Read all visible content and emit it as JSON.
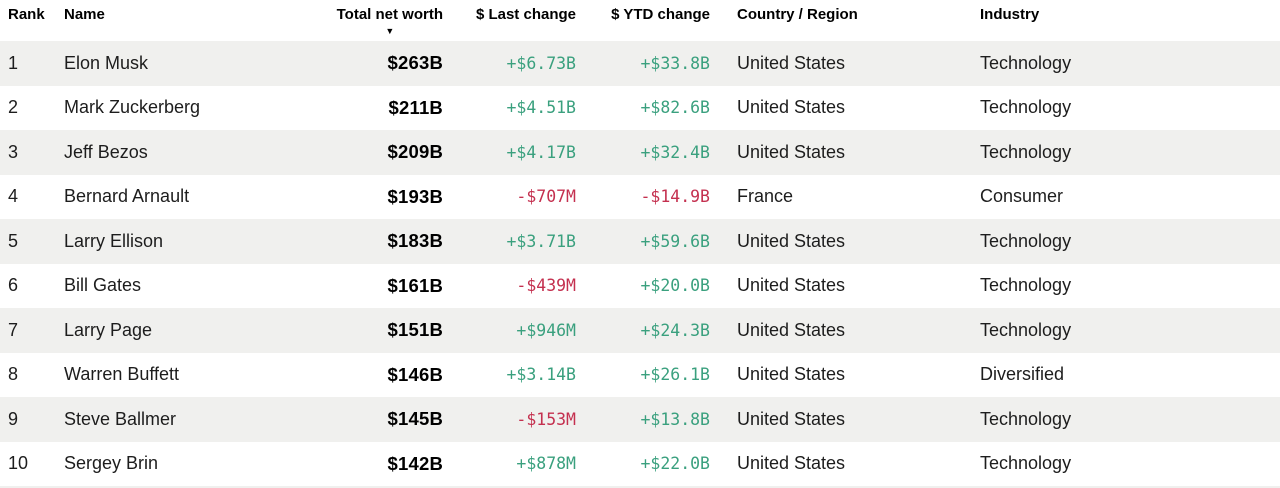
{
  "table": {
    "columns": [
      "Rank",
      "Name",
      "Total net worth",
      "$ Last change",
      "$ YTD change",
      "Country / Region",
      "Industry"
    ],
    "sort": {
      "column": "Total net worth",
      "direction": "descending",
      "indicator": "▼"
    },
    "rows": [
      {
        "rank": "1",
        "name": "Elon Musk",
        "net_worth": "$263B",
        "last_change": "+$6.73B",
        "ytd_change": "+$33.8B",
        "country": "United States",
        "industry": "Technology"
      },
      {
        "rank": "2",
        "name": "Mark Zuckerberg",
        "net_worth": "$211B",
        "last_change": "+$4.51B",
        "ytd_change": "+$82.6B",
        "country": "United States",
        "industry": "Technology"
      },
      {
        "rank": "3",
        "name": "Jeff Bezos",
        "net_worth": "$209B",
        "last_change": "+$4.17B",
        "ytd_change": "+$32.4B",
        "country": "United States",
        "industry": "Technology"
      },
      {
        "rank": "4",
        "name": "Bernard Arnault",
        "net_worth": "$193B",
        "last_change": "-$707M",
        "ytd_change": "-$14.9B",
        "country": "France",
        "industry": "Consumer"
      },
      {
        "rank": "5",
        "name": "Larry Ellison",
        "net_worth": "$183B",
        "last_change": "+$3.71B",
        "ytd_change": "+$59.6B",
        "country": "United States",
        "industry": "Technology"
      },
      {
        "rank": "6",
        "name": "Bill Gates",
        "net_worth": "$161B",
        "last_change": "-$439M",
        "ytd_change": "+$20.0B",
        "country": "United States",
        "industry": "Technology"
      },
      {
        "rank": "7",
        "name": "Larry Page",
        "net_worth": "$151B",
        "last_change": "+$946M",
        "ytd_change": "+$24.3B",
        "country": "United States",
        "industry": "Technology"
      },
      {
        "rank": "8",
        "name": "Warren Buffett",
        "net_worth": "$146B",
        "last_change": "+$3.14B",
        "ytd_change": "+$26.1B",
        "country": "United States",
        "industry": "Diversified"
      },
      {
        "rank": "9",
        "name": "Steve Ballmer",
        "net_worth": "$145B",
        "last_change": "-$153M",
        "ytd_change": "+$13.8B",
        "country": "United States",
        "industry": "Technology"
      },
      {
        "rank": "10",
        "name": "Sergey Brin",
        "net_worth": "$142B",
        "last_change": "+$878M",
        "ytd_change": "+$22.0B",
        "country": "United States",
        "industry": "Technology"
      }
    ]
  },
  "colors": {
    "positive": "#3aa07e",
    "negative": "#c4304f",
    "stripe": "#f0f0ee",
    "header_text": "#000000",
    "body_text": "#1d1d1d"
  }
}
